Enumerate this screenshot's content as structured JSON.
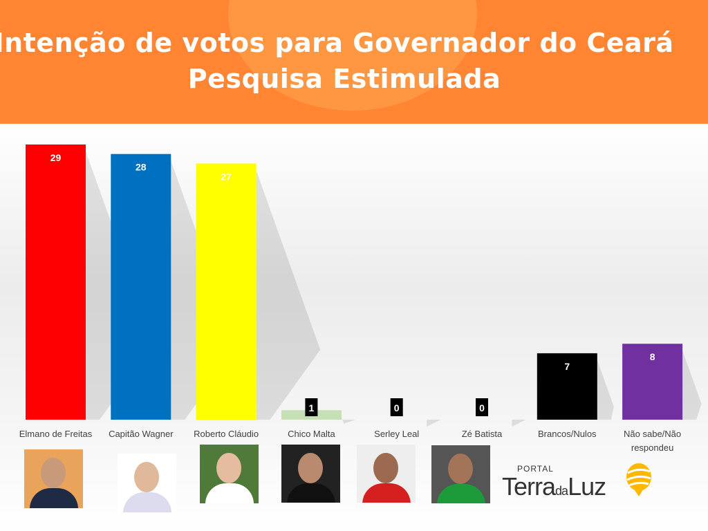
{
  "header": {
    "title_line1": "Intenção de votos para Governador do Ceará",
    "title_line2": "Pesquisa Estimulada",
    "bg_color": "#ff8533"
  },
  "chart_data": {
    "type": "bar",
    "title": "Intenção de votos para Governador do Ceará - Pesquisa Estimulada",
    "categories": [
      "Elmano de Freitas",
      "Capitão Wagner",
      "Roberto Cláudio",
      "Chico Malta",
      "Serley Leal",
      "Zé Batista",
      "Brancos/Nulos",
      "Não sabe/Não respondeu"
    ],
    "values": [
      29,
      28,
      27,
      1,
      0,
      0,
      7,
      8
    ],
    "colors": [
      "#ff0000",
      "#0070c0",
      "#ffff00",
      "#c5e0b4",
      "#c5e0b4",
      "#c5e0b4",
      "#000000",
      "#7030a0"
    ],
    "ylim": [
      0,
      29
    ],
    "grid": false,
    "legend": "none"
  },
  "logo": {
    "portal": "PORTAL",
    "terra": "Terra",
    "da": "da",
    "luz": "Luz"
  }
}
